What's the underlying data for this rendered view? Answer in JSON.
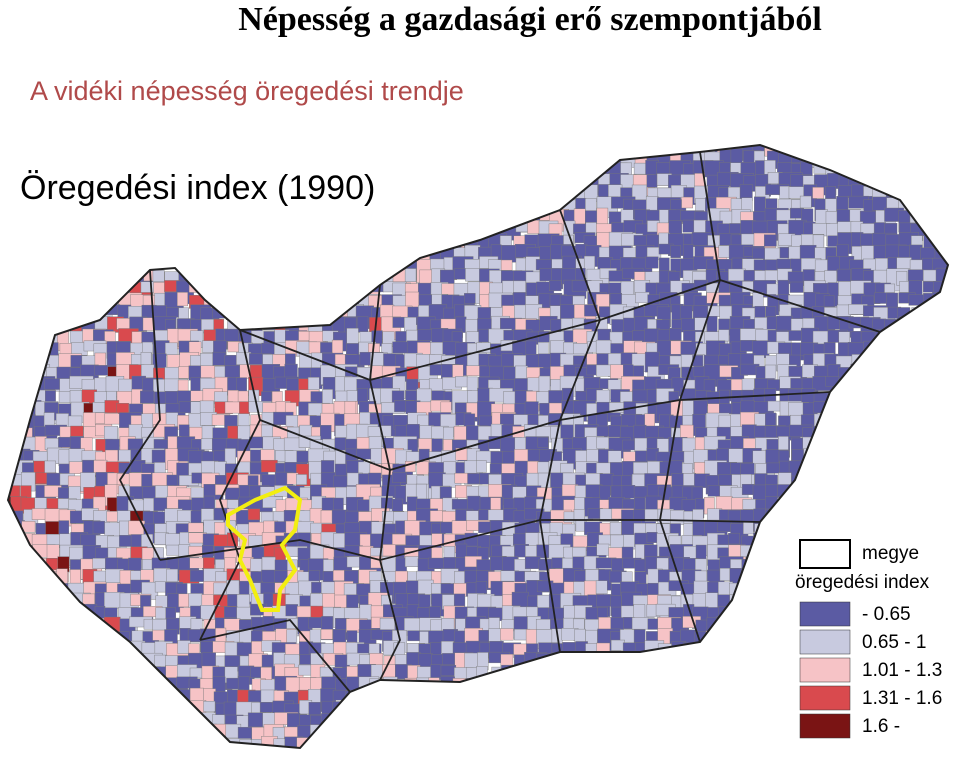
{
  "header": {
    "title": "Népesség a gazdasági erő szempontjából",
    "subtitle": "A vidéki népesség öregedési trendje"
  },
  "map": {
    "title": "Öregedési index (1990)",
    "legend": {
      "border_label": "megye",
      "title": "öregedési index",
      "items": [
        {
          "label": "- 0.65",
          "color": "#5b5ba3"
        },
        {
          "label": "0.65 - 1",
          "color": "#c8cadf"
        },
        {
          "label": "1.01 - 1.3",
          "color": "#f6c3c6"
        },
        {
          "label": "1.31 - 1.6",
          "color": "#d94a4e"
        },
        {
          "label": "1.6 -",
          "color": "#7a1414"
        }
      ]
    }
  }
}
